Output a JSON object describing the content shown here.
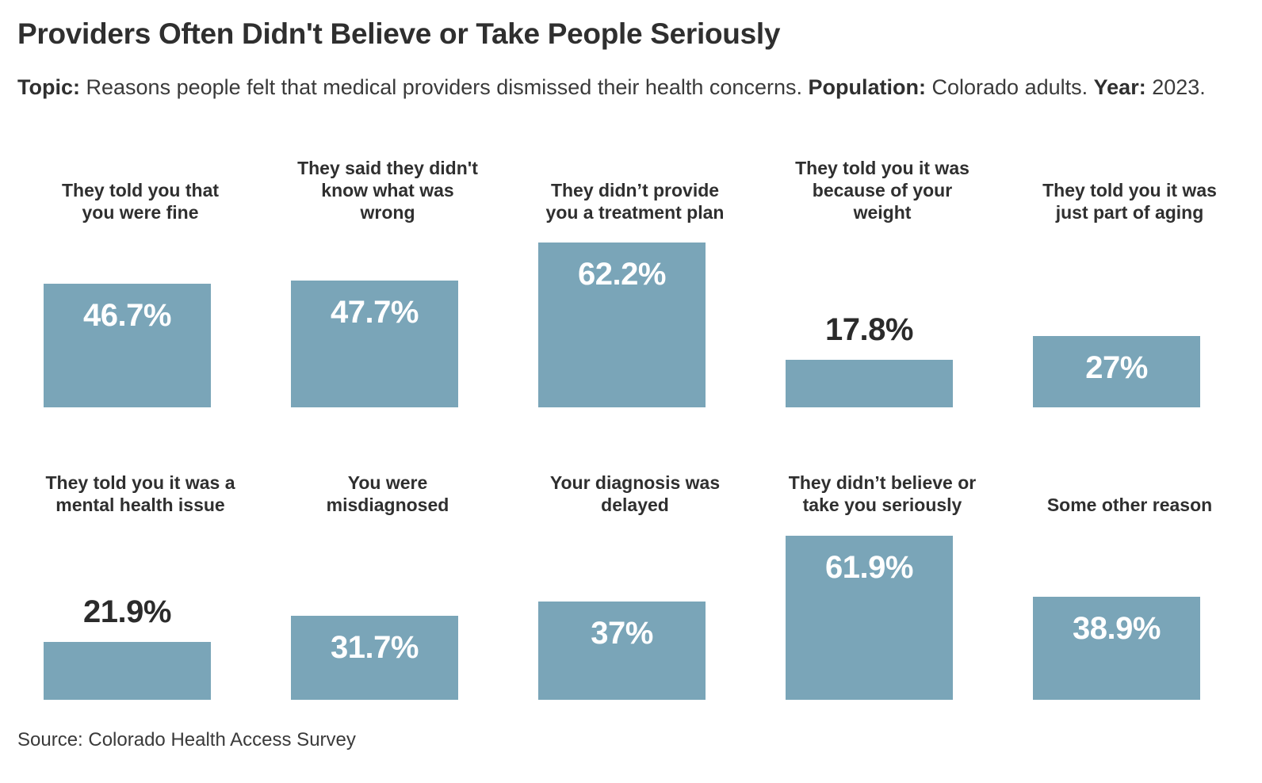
{
  "title": "Providers Often Didn't Believe or Take People Seriously",
  "subtitle": {
    "topic_label": "Topic:",
    "topic_text": "Reasons people felt that medical providers dismissed their health concerns.",
    "population_label": "Population:",
    "population_text": "Colorado adults.",
    "year_label": "Year:",
    "year_text": "2023."
  },
  "source": "Source: Colorado Health Access Survey",
  "colors": {
    "bar": "#7aa5b8",
    "label_inside": "#ffffff",
    "label_outside": "#2b2b2b"
  },
  "chart_data": {
    "type": "bar",
    "layout": "small-multiples",
    "unit": "%",
    "categories": [
      [
        "They told you that",
        "you were fine"
      ],
      [
        "They said they didn't",
        "know what was",
        "wrong"
      ],
      [
        "They didn’t provide",
        "you a treatment plan"
      ],
      [
        "They told you it was",
        "because of your",
        "weight"
      ],
      [
        "They told you it was",
        "just part of aging"
      ],
      [
        "They told you it was a",
        "mental health issue"
      ],
      [
        "You were",
        "misdiagnosed"
      ],
      [
        "Your diagnosis was",
        "delayed"
      ],
      [
        "They didn’t believe or",
        "take you seriously"
      ],
      [
        "Some other reason"
      ]
    ],
    "values": [
      46.7,
      47.7,
      62.2,
      17.8,
      27,
      21.9,
      31.7,
      37,
      61.9,
      38.9
    ],
    "value_labels": [
      "46.7%",
      "47.7%",
      "62.2%",
      "17.8%",
      "27%",
      "21.9%",
      "31.7%",
      "37%",
      "61.9%",
      "38.9%"
    ],
    "ylim": [
      0,
      62.2
    ]
  }
}
